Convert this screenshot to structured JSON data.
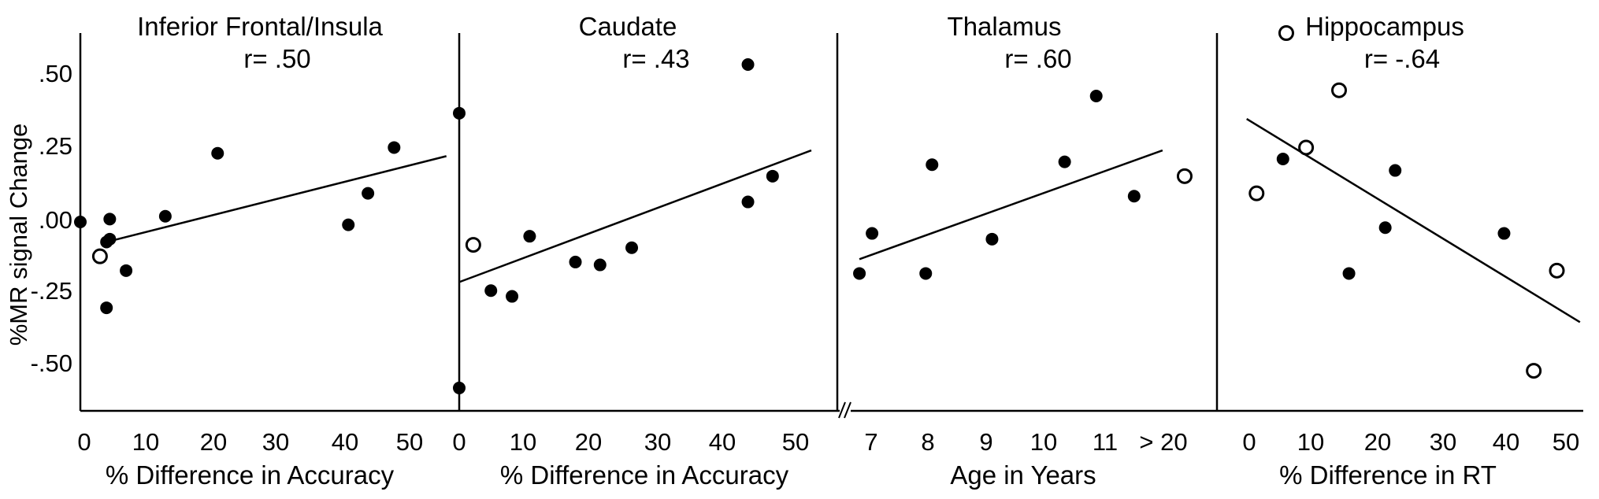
{
  "chart_data": {
    "ylabel": "%MR signal Change",
    "yticks": [
      ".50",
      ".25",
      ".00",
      "-.25",
      "-.50"
    ],
    "panels": [
      {
        "type": "scatter",
        "title": "Inferior Frontal/Insula",
        "r_label": "r= .50",
        "xlabel": "% Difference in Accuracy",
        "xticks": [
          "0",
          "10",
          "20",
          "30",
          "40",
          "50"
        ],
        "xlim": [
          0,
          57
        ],
        "ylim": [
          -0.66,
          0.66
        ],
        "points": [
          {
            "x": 0,
            "y": 0.0,
            "open": false
          },
          {
            "x": 3,
            "y": -0.12,
            "open": true
          },
          {
            "x": 4,
            "y": -0.07,
            "open": false
          },
          {
            "x": 4.5,
            "y": -0.06,
            "open": false
          },
          {
            "x": 4.5,
            "y": 0.01,
            "open": false
          },
          {
            "x": 4,
            "y": -0.3,
            "open": false
          },
          {
            "x": 7,
            "y": -0.17,
            "open": false
          },
          {
            "x": 13,
            "y": 0.02,
            "open": false
          },
          {
            "x": 21,
            "y": 0.24,
            "open": false
          },
          {
            "x": 41,
            "y": -0.01,
            "open": false
          },
          {
            "x": 44,
            "y": 0.1,
            "open": false
          },
          {
            "x": 48,
            "y": 0.26,
            "open": false
          }
        ],
        "fit": [
          [
            4,
            -0.07
          ],
          [
            56,
            0.23
          ]
        ]
      },
      {
        "type": "scatter",
        "title": "Caudate",
        "r_label": "r= .43",
        "xlabel": "% Difference in Accuracy",
        "xticks": [
          "0",
          "10",
          "20",
          "30",
          "40",
          "50"
        ],
        "xlim": [
          0,
          50
        ],
        "ylim": [
          -0.66,
          0.66
        ],
        "points": [
          {
            "x": 0,
            "y": 0.38,
            "open": false
          },
          {
            "x": 0,
            "y": -0.58,
            "open": false
          },
          {
            "x": 2,
            "y": -0.08,
            "open": true
          },
          {
            "x": 4.5,
            "y": -0.24,
            "open": false
          },
          {
            "x": 7.5,
            "y": -0.26,
            "open": false
          },
          {
            "x": 10,
            "y": -0.05,
            "open": false
          },
          {
            "x": 16.5,
            "y": -0.14,
            "open": false
          },
          {
            "x": 20,
            "y": -0.15,
            "open": false
          },
          {
            "x": 24.5,
            "y": -0.09,
            "open": false
          },
          {
            "x": 41,
            "y": 0.55,
            "open": false
          },
          {
            "x": 41,
            "y": 0.07,
            "open": false
          },
          {
            "x": 44.5,
            "y": 0.16,
            "open": false
          }
        ],
        "fit": [
          [
            0,
            -0.21
          ],
          [
            50,
            0.25
          ]
        ]
      },
      {
        "type": "scatter",
        "title": "Thalamus",
        "r_label": "r= .60",
        "xlabel": "Age in Years",
        "xticks": [
          "7",
          "8",
          "9",
          "10",
          "11",
          "> 20"
        ],
        "xlim": [
          6.5,
          12.2
        ],
        "ylim": [
          -0.66,
          0.66
        ],
        "points": [
          {
            "x": 6.85,
            "y": -0.18,
            "open": false
          },
          {
            "x": 7.05,
            "y": -0.04,
            "open": false
          },
          {
            "x": 7.9,
            "y": -0.18,
            "open": false
          },
          {
            "x": 8.0,
            "y": 0.2,
            "open": false
          },
          {
            "x": 8.95,
            "y": -0.06,
            "open": false
          },
          {
            "x": 10.1,
            "y": 0.21,
            "open": false
          },
          {
            "x": 10.6,
            "y": 0.44,
            "open": false
          },
          {
            "x": 11.2,
            "y": 0.09,
            "open": false
          },
          {
            "x": 12.0,
            "y": 0.16,
            "open": true
          }
        ],
        "fit": [
          [
            6.85,
            -0.13
          ],
          [
            11.65,
            0.25
          ]
        ]
      },
      {
        "type": "scatter",
        "title": "Hippocampus",
        "r_label": "r= -.64",
        "xlabel": "% Difference in RT",
        "xticks": [
          "0",
          "10",
          "20",
          "30",
          "40",
          "50"
        ],
        "xlim": [
          -3.5,
          52
        ],
        "ylim": [
          -0.66,
          0.66
        ],
        "points": [
          {
            "x": 2.5,
            "y": 0.1,
            "open": true
          },
          {
            "x": 7,
            "y": 0.66,
            "open": true
          },
          {
            "x": 6.5,
            "y": 0.22,
            "open": false
          },
          {
            "x": 10,
            "y": 0.26,
            "open": true
          },
          {
            "x": 15,
            "y": 0.46,
            "open": true
          },
          {
            "x": 16.5,
            "y": -0.18,
            "open": false
          },
          {
            "x": 22,
            "y": -0.02,
            "open": false
          },
          {
            "x": 23.5,
            "y": 0.18,
            "open": false
          },
          {
            "x": 40,
            "y": -0.04,
            "open": false
          },
          {
            "x": 44.5,
            "y": -0.52,
            "open": true
          },
          {
            "x": 48,
            "y": -0.17,
            "open": true
          }
        ],
        "fit": [
          [
            1,
            0.36
          ],
          [
            51.5,
            -0.35
          ]
        ]
      }
    ]
  }
}
